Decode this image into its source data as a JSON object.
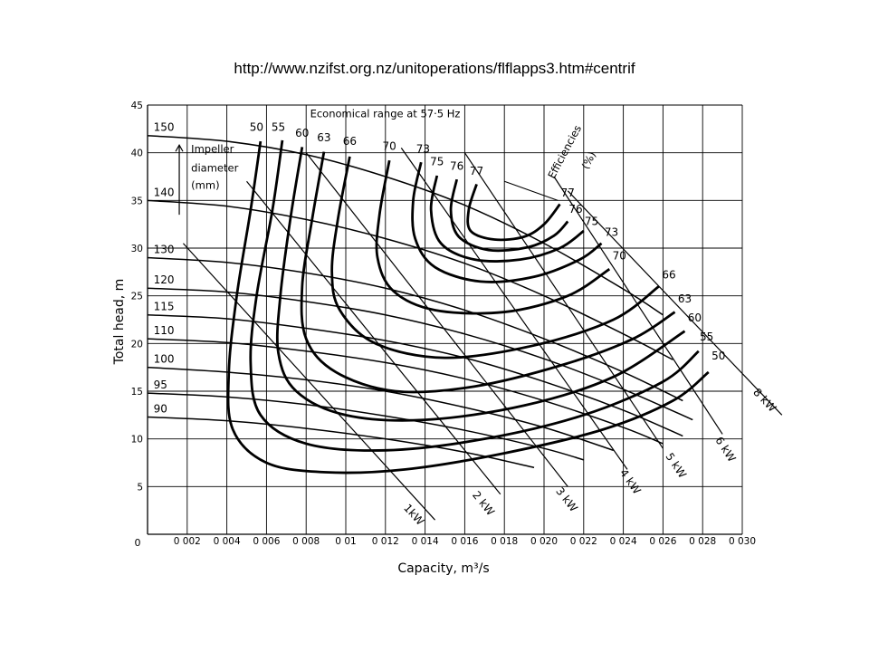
{
  "page": {
    "source_url": "http://www.nzifst.org.nz/unitoperations/flflapps3.htm#centrif"
  },
  "chart_data": {
    "type": "line",
    "title": "",
    "xlabel": "Capacity,   m³/s",
    "ylabel": "Total head,   m",
    "xlim": [
      0,
      0.03
    ],
    "ylim": [
      0,
      45
    ],
    "grid": true,
    "x_ticks": [
      {
        "value": 0.002,
        "label": "0 002"
      },
      {
        "value": 0.004,
        "label": "0 004"
      },
      {
        "value": 0.006,
        "label": "0 006"
      },
      {
        "value": 0.008,
        "label": "0 008"
      },
      {
        "value": 0.01,
        "label": "0 01"
      },
      {
        "value": 0.012,
        "label": "0 012"
      },
      {
        "value": 0.014,
        "label": "0 014"
      },
      {
        "value": 0.016,
        "label": "0 016"
      },
      {
        "value": 0.018,
        "label": "0 018"
      },
      {
        "value": 0.02,
        "label": "0 020"
      },
      {
        "value": 0.022,
        "label": "0 022"
      },
      {
        "value": 0.024,
        "label": "0 024"
      },
      {
        "value": 0.026,
        "label": "0 026"
      },
      {
        "value": 0.028,
        "label": "0 028"
      },
      {
        "value": 0.03,
        "label": "0 030"
      }
    ],
    "x_origin_label": "0",
    "y_ticks": [
      {
        "value": 5,
        "label": "5"
      },
      {
        "value": 10,
        "label": "10"
      },
      {
        "value": 15,
        "label": "15"
      },
      {
        "value": 20,
        "label": "20"
      },
      {
        "value": 25,
        "label": "25"
      },
      {
        "value": 30,
        "label": "30"
      },
      {
        "value": 35,
        "label": "35"
      },
      {
        "value": 40,
        "label": "40"
      },
      {
        "value": 45,
        "label": "45"
      }
    ],
    "annotations": [
      {
        "text": "Economical range at 57·5 Hz",
        "x": 0.0082,
        "y": 43.7
      },
      {
        "text": "Impeller",
        "x": 0.0022,
        "y": 40.0
      },
      {
        "text": "diameter",
        "x": 0.0022,
        "y": 38.0
      },
      {
        "text": "(mm)",
        "x": 0.0022,
        "y": 36.2
      },
      {
        "text": "Efficiencies",
        "x": 0.0205,
        "y": 37.2
      },
      {
        "text": "(%)",
        "x": 0.0222,
        "y": 38.2
      }
    ],
    "head_curves": [
      {
        "name": "150",
        "points": [
          [
            0,
            41.8
          ],
          [
            0.004,
            41.2
          ],
          [
            0.008,
            39.8
          ],
          [
            0.012,
            37.5
          ],
          [
            0.016,
            34.5
          ],
          [
            0.02,
            30.5
          ],
          [
            0.024,
            25.7
          ],
          [
            0.026,
            23.0
          ]
        ]
      },
      {
        "name": "140",
        "points": [
          [
            0,
            35.0
          ],
          [
            0.004,
            34.4
          ],
          [
            0.008,
            33.0
          ],
          [
            0.012,
            31.0
          ],
          [
            0.016,
            28.4
          ],
          [
            0.02,
            25.0
          ],
          [
            0.024,
            21.0
          ],
          [
            0.0265,
            18.3
          ]
        ]
      },
      {
        "name": "130",
        "points": [
          [
            0,
            29.0
          ],
          [
            0.004,
            28.5
          ],
          [
            0.008,
            27.4
          ],
          [
            0.012,
            25.8
          ],
          [
            0.016,
            23.5
          ],
          [
            0.02,
            20.5
          ],
          [
            0.024,
            17.0
          ],
          [
            0.027,
            14.0
          ]
        ]
      },
      {
        "name": "120",
        "points": [
          [
            0,
            25.8
          ],
          [
            0.004,
            25.4
          ],
          [
            0.008,
            24.4
          ],
          [
            0.012,
            23.0
          ],
          [
            0.016,
            21.0
          ],
          [
            0.02,
            18.4
          ],
          [
            0.024,
            15.2
          ],
          [
            0.0275,
            12.0
          ]
        ]
      },
      {
        "name": "115",
        "points": [
          [
            0,
            23.0
          ],
          [
            0.004,
            22.6
          ],
          [
            0.008,
            21.6
          ],
          [
            0.012,
            20.3
          ],
          [
            0.016,
            18.5
          ],
          [
            0.02,
            16.0
          ],
          [
            0.024,
            13.0
          ],
          [
            0.027,
            10.3
          ]
        ]
      },
      {
        "name": "110",
        "points": [
          [
            0,
            20.5
          ],
          [
            0.004,
            20.1
          ],
          [
            0.008,
            19.2
          ],
          [
            0.012,
            18.0
          ],
          [
            0.016,
            16.3
          ],
          [
            0.02,
            14.0
          ],
          [
            0.024,
            11.2
          ],
          [
            0.026,
            9.5
          ]
        ]
      },
      {
        "name": "100",
        "points": [
          [
            0,
            17.5
          ],
          [
            0.004,
            17.0
          ],
          [
            0.008,
            16.2
          ],
          [
            0.012,
            15.0
          ],
          [
            0.016,
            13.3
          ],
          [
            0.02,
            11.2
          ],
          [
            0.0235,
            8.8
          ]
        ]
      },
      {
        "name": "95",
        "points": [
          [
            0,
            14.8
          ],
          [
            0.004,
            14.4
          ],
          [
            0.008,
            13.6
          ],
          [
            0.012,
            12.4
          ],
          [
            0.016,
            10.9
          ],
          [
            0.02,
            9.0
          ],
          [
            0.022,
            7.8
          ]
        ]
      },
      {
        "name": "90",
        "points": [
          [
            0,
            12.3
          ],
          [
            0.004,
            11.9
          ],
          [
            0.008,
            11.1
          ],
          [
            0.012,
            10.0
          ],
          [
            0.016,
            8.6
          ],
          [
            0.0195,
            7.0
          ]
        ]
      }
    ],
    "efficiency_curves": [
      {
        "name": "50",
        "label_at": [
          0.0055,
          42.3
        ],
        "end_label_at": [
          0.0288,
          18.3
        ],
        "points": [
          [
            0.0057,
            41.2
          ],
          [
            0.0052,
            34.0
          ],
          [
            0.0045,
            25.0
          ],
          [
            0.0041,
            17.0
          ],
          [
            0.0043,
            11.0
          ],
          [
            0.006,
            7.5
          ],
          [
            0.009,
            6.5
          ],
          [
            0.013,
            6.8
          ],
          [
            0.018,
            8.5
          ],
          [
            0.023,
            11.0
          ],
          [
            0.0265,
            14.0
          ],
          [
            0.0283,
            17.0
          ]
        ]
      },
      {
        "name": "55",
        "label_at": [
          0.0066,
          42.3
        ],
        "end_label_at": [
          0.0282,
          20.3
        ],
        "points": [
          [
            0.0068,
            41.3
          ],
          [
            0.0063,
            34.0
          ],
          [
            0.0055,
            25.0
          ],
          [
            0.0052,
            18.0
          ],
          [
            0.0057,
            12.5
          ],
          [
            0.008,
            9.5
          ],
          [
            0.012,
            8.8
          ],
          [
            0.017,
            10.0
          ],
          [
            0.022,
            12.5
          ],
          [
            0.026,
            16.0
          ],
          [
            0.0278,
            19.2
          ]
        ]
      },
      {
        "name": "60",
        "label_at": [
          0.0078,
          41.7
        ],
        "end_label_at": [
          0.0276,
          22.3
        ],
        "points": [
          [
            0.0078,
            40.6
          ],
          [
            0.0072,
            33.0
          ],
          [
            0.0067,
            25.0
          ],
          [
            0.0066,
            19.0
          ],
          [
            0.0075,
            15.0
          ],
          [
            0.01,
            12.5
          ],
          [
            0.014,
            12.0
          ],
          [
            0.019,
            13.5
          ],
          [
            0.0235,
            16.5
          ],
          [
            0.0271,
            21.3
          ]
        ]
      },
      {
        "name": "63",
        "label_at": [
          0.0089,
          41.2
        ],
        "end_label_at": [
          0.0271,
          24.3
        ],
        "points": [
          [
            0.0089,
            40.1
          ],
          [
            0.0083,
            33.0
          ],
          [
            0.0078,
            26.0
          ],
          [
            0.008,
            20.5
          ],
          [
            0.0095,
            17.0
          ],
          [
            0.0125,
            15.0
          ],
          [
            0.0165,
            15.5
          ],
          [
            0.021,
            17.8
          ],
          [
            0.0245,
            20.5
          ],
          [
            0.0266,
            23.3
          ]
        ]
      },
      {
        "name": "66",
        "label_at": [
          0.0102,
          40.8
        ],
        "end_label_at": [
          0.0263,
          26.8
        ],
        "points": [
          [
            0.0102,
            39.6
          ],
          [
            0.0096,
            33.0
          ],
          [
            0.0093,
            27.5
          ],
          [
            0.0097,
            23.5
          ],
          [
            0.0115,
            20.0
          ],
          [
            0.015,
            18.5
          ],
          [
            0.0195,
            19.8
          ],
          [
            0.0235,
            22.5
          ],
          [
            0.0258,
            26.0
          ]
        ]
      },
      {
        "name": "70",
        "label_at": [
          0.0122,
          40.3
        ],
        "end_label_at": [
          0.0238,
          28.8
        ],
        "points": [
          [
            0.0122,
            39.2
          ],
          [
            0.0117,
            33.5
          ],
          [
            0.0116,
            29.0
          ],
          [
            0.0124,
            25.5
          ],
          [
            0.0145,
            23.5
          ],
          [
            0.018,
            23.3
          ],
          [
            0.0212,
            25.0
          ],
          [
            0.0233,
            27.8
          ]
        ]
      },
      {
        "name": "73",
        "label_at": [
          0.0139,
          40.0
        ],
        "end_label_at": [
          0.0234,
          31.3
        ],
        "points": [
          [
            0.0138,
            39.0
          ],
          [
            0.0134,
            35.0
          ],
          [
            0.0135,
            31.0
          ],
          [
            0.0145,
            28.0
          ],
          [
            0.0168,
            26.5
          ],
          [
            0.0195,
            27.0
          ],
          [
            0.0218,
            28.8
          ],
          [
            0.0229,
            30.5
          ]
        ]
      },
      {
        "name": "75",
        "label_at": [
          0.0146,
          38.7
        ],
        "end_label_at": [
          0.0224,
          32.4
        ],
        "points": [
          [
            0.0146,
            37.6
          ],
          [
            0.0143,
            34.0
          ],
          [
            0.0148,
            30.5
          ],
          [
            0.0165,
            28.8
          ],
          [
            0.0188,
            28.8
          ],
          [
            0.0208,
            30.0
          ],
          [
            0.022,
            31.8
          ]
        ]
      },
      {
        "name": "76",
        "label_at": [
          0.0156,
          38.2
        ],
        "end_label_at": [
          0.0216,
          33.7
        ],
        "points": [
          [
            0.0156,
            37.2
          ],
          [
            0.0153,
            34.0
          ],
          [
            0.0157,
            31.2
          ],
          [
            0.0172,
            29.8
          ],
          [
            0.0192,
            30.1
          ],
          [
            0.0205,
            31.3
          ],
          [
            0.0212,
            32.8
          ]
        ]
      },
      {
        "name": "77",
        "label_at": [
          0.0166,
          37.7
        ],
        "end_label_at": [
          0.0212,
          35.4
        ],
        "points": [
          [
            0.0166,
            36.7
          ],
          [
            0.0162,
            34.0
          ],
          [
            0.0163,
            31.8
          ],
          [
            0.0175,
            30.9
          ],
          [
            0.019,
            31.2
          ],
          [
            0.02,
            32.5
          ],
          [
            0.0208,
            34.6
          ]
        ]
      }
    ],
    "power_lines": [
      {
        "name": "1kW",
        "label_at": [
          0.0133,
          1.8
        ],
        "points": [
          [
            0.0018,
            30.5
          ],
          [
            0.0145,
            1.5
          ]
        ]
      },
      {
        "name": "2 kW",
        "label_at": [
          0.0168,
          3.0
        ],
        "points": [
          [
            0.005,
            37.0
          ],
          [
            0.0178,
            4.2
          ]
        ]
      },
      {
        "name": "3 kW",
        "label_at": [
          0.021,
          3.4
        ],
        "points": [
          [
            0.008,
            40.0
          ],
          [
            0.0212,
            5.0
          ]
        ]
      },
      {
        "name": "4 kW",
        "label_at": [
          0.0242,
          5.3
        ],
        "points": [
          [
            0.0128,
            40.5
          ],
          [
            0.0242,
            6.8
          ]
        ]
      },
      {
        "name": "5 kW",
        "label_at": [
          0.0265,
          7.0
        ],
        "points": [
          [
            0.016,
            40.0
          ],
          [
            0.026,
            9.0
          ]
        ]
      },
      {
        "name": "6 kW",
        "label_at": [
          0.029,
          8.7
        ],
        "points": [
          [
            0.0205,
            37.5
          ],
          [
            0.029,
            10.5
          ]
        ]
      },
      {
        "name": "8 kW",
        "label_at": [
          0.031,
          13.8
        ],
        "points": [
          [
            0.0212,
            36.0
          ],
          [
            0.032,
            12.5
          ]
        ]
      }
    ]
  }
}
